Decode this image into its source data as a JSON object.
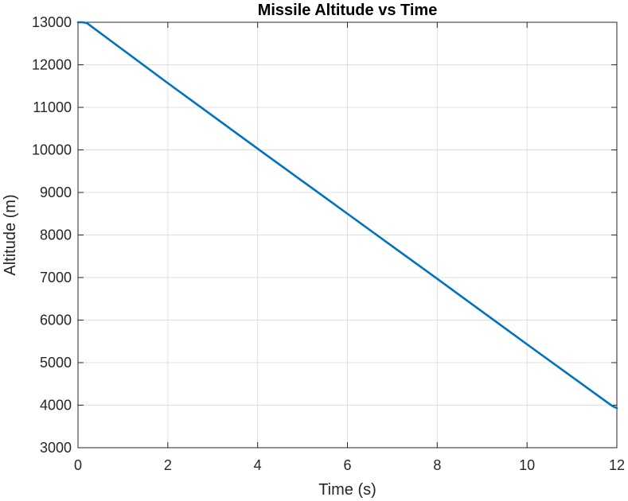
{
  "chart_data": {
    "type": "line",
    "title": "Missile Altitude vs Time",
    "xlabel": "Time (s)",
    "ylabel": "Altitude (m)",
    "xlim": [
      0,
      12
    ],
    "ylim": [
      3000,
      13000
    ],
    "xticks": [
      0,
      2,
      4,
      6,
      8,
      10,
      12
    ],
    "yticks": [
      3000,
      4000,
      5000,
      6000,
      7000,
      8000,
      9000,
      10000,
      11000,
      12000,
      13000
    ],
    "grid": true,
    "series": [
      {
        "color": "#0072BD",
        "x": [
          0,
          0.1,
          0.2,
          2,
          4,
          6,
          8,
          10,
          11.9,
          12
        ],
        "y": [
          13000,
          13000,
          12980,
          11570,
          10030,
          8500,
          6970,
          5430,
          3980,
          3930
        ]
      }
    ]
  }
}
